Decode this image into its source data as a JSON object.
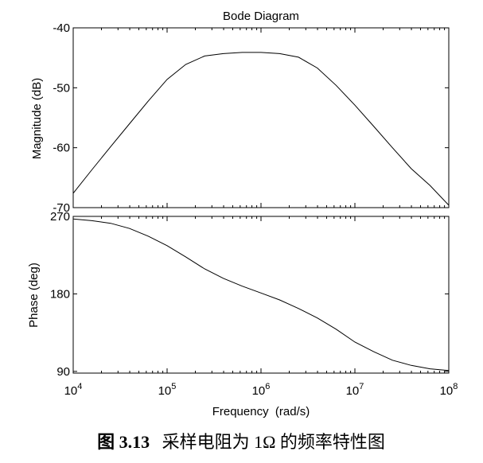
{
  "chart_data": [
    {
      "type": "line",
      "title": "Bode Diagram",
      "ylabel": "Magnitude (dB)",
      "xscale": "log",
      "xlim": [
        10000,
        100000000
      ],
      "ylim": [
        -70,
        -40
      ],
      "yticks": [
        -40,
        -50,
        -60,
        -70
      ],
      "grid": false,
      "x": [
        10000,
        15800,
        25100,
        39800,
        63100,
        100000,
        158000,
        251000,
        398000,
        631000,
        1000000,
        1580000,
        2510000,
        3980000,
        6310000,
        10000000,
        15800000,
        25100000,
        39800000,
        63100000,
        100000000
      ],
      "y": [
        -67.6,
        -63.7,
        -59.8,
        -56.0,
        -52.2,
        -48.6,
        -46.1,
        -44.7,
        -44.3,
        -44.1,
        -44.1,
        -44.3,
        -44.9,
        -46.7,
        -49.6,
        -52.9,
        -56.4,
        -60.0,
        -63.5,
        -66.3,
        -69.6
      ]
    },
    {
      "type": "line",
      "ylabel": "Phase (deg)",
      "xlabel": "Frequency  (rad/s)",
      "xscale": "log",
      "xlim": [
        10000,
        100000000
      ],
      "ylim": [
        88,
        270
      ],
      "yticks": [
        90,
        180,
        270
      ],
      "xticks": [
        "10^4",
        "10^5",
        "10^6",
        "10^7",
        "10^8"
      ],
      "grid": false,
      "x": [
        10000,
        15800,
        25100,
        39800,
        63100,
        100000,
        158000,
        251000,
        398000,
        631000,
        1000000,
        1580000,
        2510000,
        3980000,
        6310000,
        10000000,
        15800000,
        25100000,
        39800000,
        63100000,
        100000000
      ],
      "y": [
        267,
        265,
        262,
        256,
        247,
        236,
        223,
        209,
        198,
        189,
        181,
        173,
        163,
        152,
        139,
        124,
        113,
        103,
        97,
        93,
        91
      ]
    }
  ],
  "caption": {
    "label": "图 3.13",
    "text": "采样电阻为 1Ω 的频率特性图"
  },
  "colors": {
    "line": "#000000",
    "axes": "#000000",
    "background": "#ffffff"
  }
}
